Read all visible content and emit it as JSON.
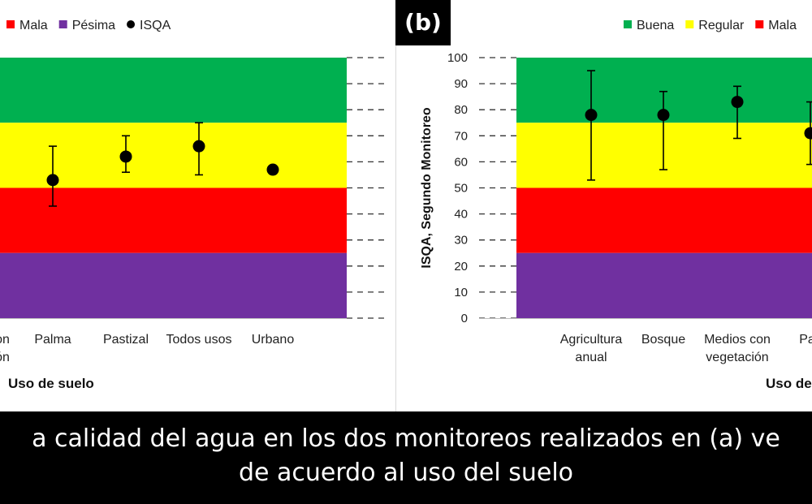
{
  "colors": {
    "buena": "#00b050",
    "regular": "#ffff00",
    "mala": "#ff0000",
    "pesima": "#7030a0",
    "point": "#000000"
  },
  "panel_tag_b": "(b)",
  "caption": {
    "line1": "a calidad del agua en los dos monitoreos realizados en (a) ve",
    "line2": "de acuerdo al uso del suelo"
  },
  "chart_data": [
    {
      "panel": "a",
      "type": "scatter",
      "legend": [
        "Mala",
        "Pésima",
        "ISQA"
      ],
      "legend_placement": "top",
      "categories": [
        "on\nón",
        "Palma",
        "Pastizal",
        "Todos usos",
        "Urbano"
      ],
      "series": [
        {
          "name": "ISQA",
          "x": [
            "Palma",
            "Pastizal",
            "Todos usos",
            "Urbano"
          ],
          "y": [
            53,
            62,
            66,
            57
          ],
          "error_low": [
            43,
            56,
            55,
            null
          ],
          "error_high": [
            66,
            70,
            75,
            null
          ]
        }
      ],
      "bands": [
        {
          "name": "Buena",
          "from": 75,
          "to": 100
        },
        {
          "name": "Regular",
          "from": 50,
          "to": 75
        },
        {
          "name": "Mala",
          "from": 25,
          "to": 50
        },
        {
          "name": "Pésima",
          "from": 0,
          "to": 25
        }
      ],
      "xlabel": "Uso de suelo",
      "ylim": [
        0,
        100
      ]
    },
    {
      "panel": "b",
      "type": "scatter",
      "legend": [
        "Buena",
        "Regular",
        "Mala"
      ],
      "legend_placement": "top",
      "categories": [
        "Agricultura\nanual",
        "Bosque",
        "Medios con\nvegetación",
        "Palı"
      ],
      "series": [
        {
          "name": "ISQA",
          "x": [
            "Agricultura\nanual",
            "Bosque",
            "Medios con\nvegetación",
            "Palı"
          ],
          "y": [
            78,
            78,
            83,
            71
          ],
          "error_low": [
            53,
            57,
            69,
            59
          ],
          "error_high": [
            95,
            87,
            89,
            83
          ]
        }
      ],
      "bands": [
        {
          "name": "Buena",
          "from": 75,
          "to": 100
        },
        {
          "name": "Regular",
          "from": 50,
          "to": 75
        },
        {
          "name": "Mala",
          "from": 25,
          "to": 50
        },
        {
          "name": "Pésima",
          "from": 0,
          "to": 25
        }
      ],
      "ylabel": "ISQA, Segundo Monitoreo",
      "xlabel": "Uso de",
      "yticks": [
        0,
        10,
        20,
        30,
        40,
        50,
        60,
        70,
        80,
        90,
        100
      ],
      "ylim": [
        0,
        100
      ]
    }
  ]
}
